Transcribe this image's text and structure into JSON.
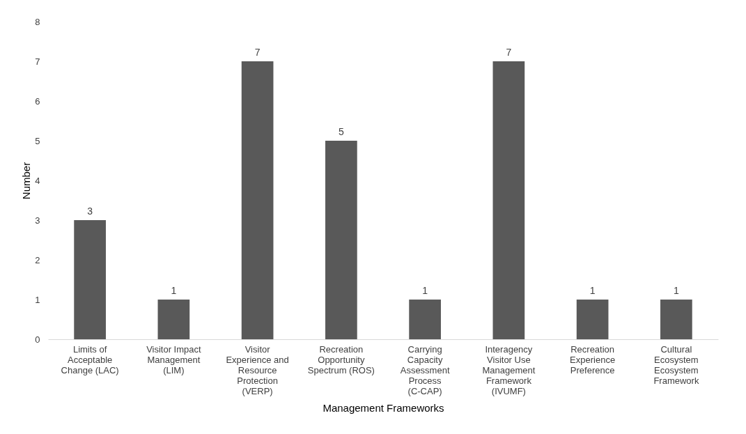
{
  "chart_data": {
    "type": "bar",
    "xlabel": "Management Frameworks",
    "ylabel": "Number",
    "categories": [
      "Limits of Acceptable Change (LAC)",
      "Visitor Impact Management (LIM)",
      "Visitor Experience and Resource Protection (VERP)",
      "Recreation Opportunity Spectrum (ROS)",
      "Carrying Capacity Assessment Process (C-CAP)",
      "Interagency Visitor Use Management Framework (IVUMF)",
      "Recreation Experience Preference",
      "Cultural Ecosystem Ecosystem Framework"
    ],
    "values": [
      3,
      1,
      7,
      5,
      1,
      7,
      1,
      1
    ],
    "color": "#595959",
    "ylim": [
      0,
      8
    ],
    "yticks": [
      0,
      1,
      2,
      3,
      4,
      5,
      6,
      7,
      8
    ],
    "grid": false,
    "data_labels": true
  }
}
